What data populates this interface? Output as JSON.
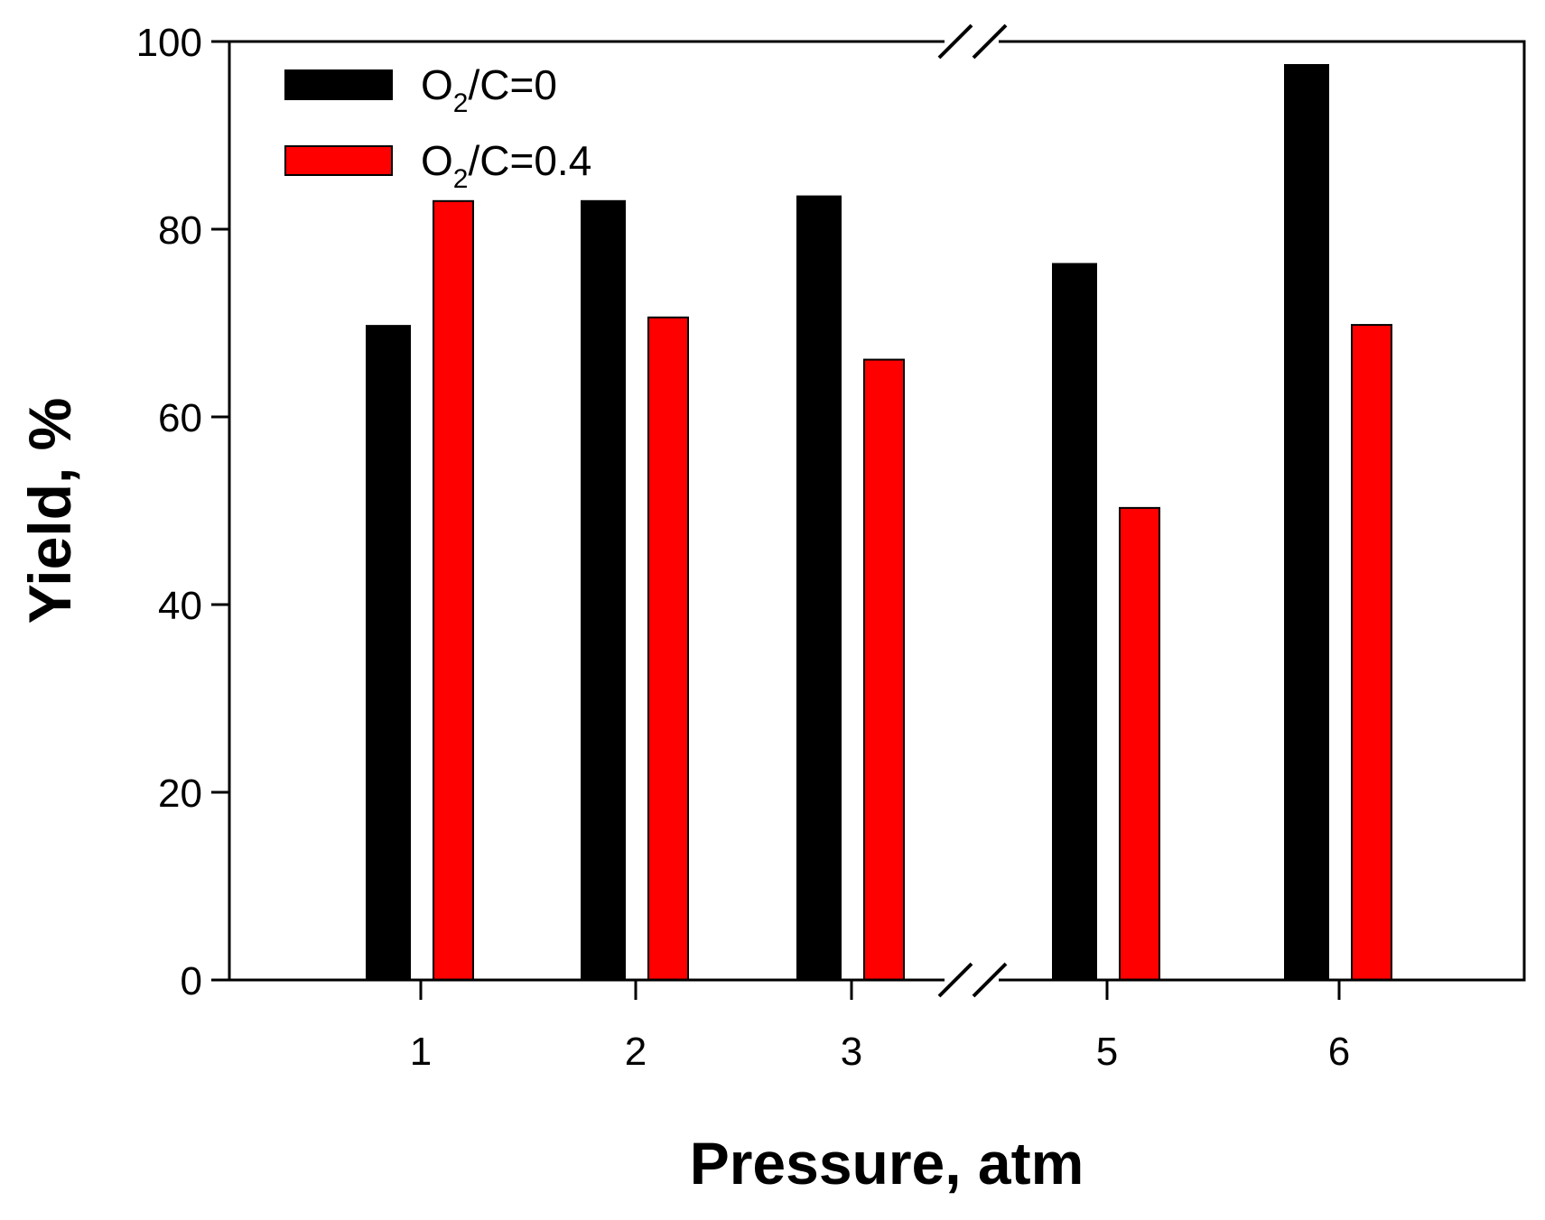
{
  "chart_data": {
    "type": "bar",
    "title": "",
    "xlabel": "Pressure, atm",
    "ylabel": "Yield, %",
    "categories": [
      "1",
      "2",
      "3",
      "5",
      "6"
    ],
    "axis_break": {
      "after_category": "3",
      "marker": "double-slash"
    },
    "ylim": [
      0,
      100
    ],
    "yticks": [
      0,
      20,
      40,
      60,
      80,
      100
    ],
    "grid": false,
    "legend_position": "top-left",
    "series": [
      {
        "name": "O2/C=0",
        "label_main": "O",
        "label_sub": "2",
        "label_rest": "/C=0",
        "color": "#000000",
        "values": [
          69.7,
          83.0,
          83.5,
          76.3,
          97.5
        ]
      },
      {
        "name": "O2/C=0.4",
        "label_main": "O",
        "label_sub": "2",
        "label_rest": "/C=0.4",
        "color": "#ff0000",
        "values": [
          83.0,
          70.6,
          66.1,
          50.3,
          69.8
        ]
      }
    ]
  }
}
